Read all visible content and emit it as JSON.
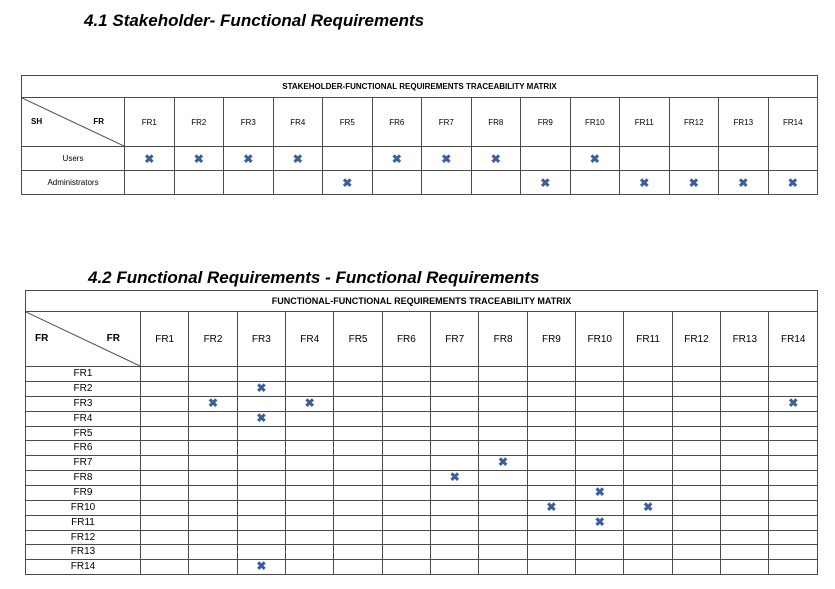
{
  "section1": {
    "heading": "4.1 Stakeholder- Functional Requirements",
    "table_title": "STAKEHOLDER-FUNCTIONAL REQUIREMENTS TRACEABILITY MATRIX",
    "corner_left": "SH",
    "corner_right": "FR",
    "columns": [
      "FR1",
      "FR2",
      "FR3",
      "FR4",
      "FR5",
      "FR6",
      "FR7",
      "FR8",
      "FR9",
      "FR10",
      "FR11",
      "FR12",
      "FR13",
      "FR14"
    ],
    "rows": [
      {
        "label": "Users",
        "marks": [
          "FR1",
          "FR2",
          "FR3",
          "FR4",
          "FR6",
          "FR7",
          "FR8",
          "FR10"
        ]
      },
      {
        "label": "Administrators",
        "marks": [
          "FR5",
          "FR9",
          "FR11",
          "FR12",
          "FR13",
          "FR14"
        ]
      }
    ]
  },
  "section2": {
    "heading": "4.2 Functional Requirements - Functional Requirements",
    "table_title": "FUNCTIONAL-FUNCTIONAL REQUIREMENTS TRACEABILITY MATRIX",
    "corner_left": "FR",
    "corner_right": "FR",
    "columns": [
      "FR1",
      "FR2",
      "FR3",
      "FR4",
      "FR5",
      "FR6",
      "FR7",
      "FR8",
      "FR9",
      "FR10",
      "FR11",
      "FR12",
      "FR13",
      "FR14"
    ],
    "rows": [
      {
        "label": "FR1",
        "marks": []
      },
      {
        "label": "FR2",
        "marks": [
          "FR3"
        ]
      },
      {
        "label": "FR3",
        "marks": [
          "FR2",
          "FR4",
          "FR14"
        ]
      },
      {
        "label": "FR4",
        "marks": [
          "FR3"
        ]
      },
      {
        "label": "FR5",
        "marks": []
      },
      {
        "label": "FR6",
        "marks": []
      },
      {
        "label": "FR7",
        "marks": [
          "FR8"
        ]
      },
      {
        "label": "FR8",
        "marks": [
          "FR7"
        ]
      },
      {
        "label": "FR9",
        "marks": [
          "FR10"
        ]
      },
      {
        "label": "FR10",
        "marks": [
          "FR9",
          "FR11"
        ]
      },
      {
        "label": "FR11",
        "marks": [
          "FR10"
        ]
      },
      {
        "label": "FR12",
        "marks": []
      },
      {
        "label": "FR13",
        "marks": []
      },
      {
        "label": "FR14",
        "marks": [
          "FR3"
        ]
      }
    ]
  },
  "mark_symbol": "✖",
  "colors": {
    "mark": "#3b5f9e",
    "border": "#4a4a4a"
  }
}
